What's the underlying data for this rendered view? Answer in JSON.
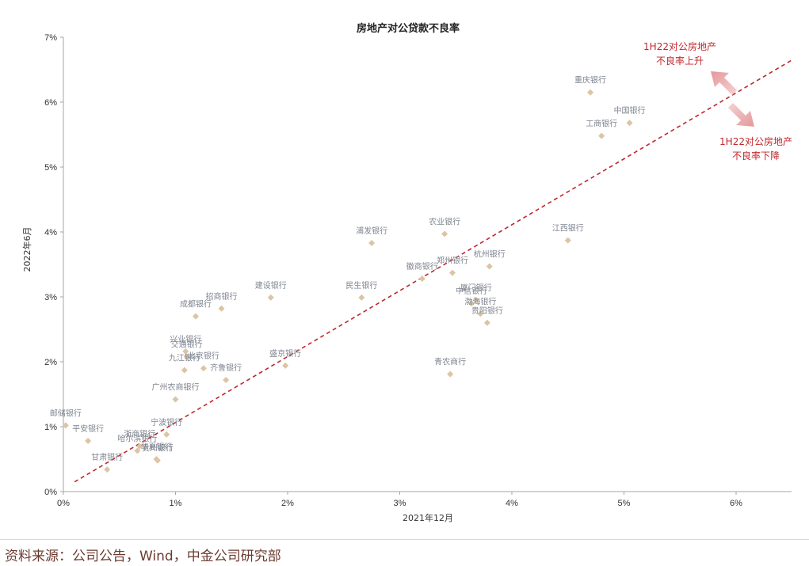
{
  "chart_data": {
    "type": "scatter",
    "title": "房地产对公贷款不良率",
    "xlabel": "2021年12月",
    "ylabel": "2022年6月",
    "xlim": [
      0,
      6.5
    ],
    "ylim": [
      0,
      7
    ],
    "x_ticks": [
      "0%",
      "1%",
      "2%",
      "3%",
      "4%",
      "5%",
      "6%"
    ],
    "y_ticks": [
      "0%",
      "1%",
      "2%",
      "3%",
      "4%",
      "5%",
      "6%",
      "7%"
    ],
    "grid": false,
    "point_color": "#dcc4a4",
    "reference_line": {
      "from": [
        0.1,
        0.15
      ],
      "to": [
        6.5,
        6.65
      ],
      "color": "#c0272d",
      "style": "dashed"
    },
    "points": [
      {
        "name": "重庆银行",
        "x": 4.7,
        "y": 6.15
      },
      {
        "name": "中国银行",
        "x": 5.05,
        "y": 5.68
      },
      {
        "name": "工商银行",
        "x": 4.8,
        "y": 5.48
      },
      {
        "name": "江西银行",
        "x": 4.5,
        "y": 3.87
      },
      {
        "name": "浦发银行",
        "x": 2.75,
        "y": 3.83
      },
      {
        "name": "农业银行",
        "x": 3.4,
        "y": 3.97
      },
      {
        "name": "杭州银行",
        "x": 3.8,
        "y": 3.47
      },
      {
        "name": "郑州银行",
        "x": 3.47,
        "y": 3.37
      },
      {
        "name": "徽商银行",
        "x": 3.2,
        "y": 3.28
      },
      {
        "name": "厦门银行",
        "x": 3.68,
        "y": 2.95
      },
      {
        "name": "中信银行",
        "x": 3.64,
        "y": 2.9
      },
      {
        "name": "渤海银行",
        "x": 3.72,
        "y": 2.74
      },
      {
        "name": "贵阳银行",
        "x": 3.78,
        "y": 2.6
      },
      {
        "name": "民生银行",
        "x": 2.66,
        "y": 2.99
      },
      {
        "name": "建设银行",
        "x": 1.85,
        "y": 2.99
      },
      {
        "name": "招商银行",
        "x": 1.41,
        "y": 2.82
      },
      {
        "name": "成都银行",
        "x": 1.18,
        "y": 2.7
      },
      {
        "name": "兴业银行",
        "x": 1.09,
        "y": 2.16
      },
      {
        "name": "交通银行",
        "x": 1.1,
        "y": 2.08
      },
      {
        "name": "九江银行",
        "x": 1.08,
        "y": 1.87
      },
      {
        "name": "齐鲁银行",
        "x": 1.45,
        "y": 1.72
      },
      {
        "name": "北京银行",
        "x": 1.25,
        "y": 1.9
      },
      {
        "name": "盛京银行",
        "x": 1.98,
        "y": 1.94
      },
      {
        "name": "青农商行",
        "x": 3.45,
        "y": 1.81
      },
      {
        "name": "广州农商银行",
        "x": 1.0,
        "y": 1.42
      },
      {
        "name": "邮储银行",
        "x": 0.02,
        "y": 1.02
      },
      {
        "name": "平安银行",
        "x": 0.22,
        "y": 0.78
      },
      {
        "name": "浙商银行",
        "x": 0.68,
        "y": 0.7
      },
      {
        "name": "宁波银行",
        "x": 0.92,
        "y": 0.88
      },
      {
        "name": "哈尔滨银行",
        "x": 0.66,
        "y": 0.63
      },
      {
        "name": "甘肃银行",
        "x": 0.39,
        "y": 0.34
      },
      {
        "name": "华夏银行",
        "x": 0.83,
        "y": 0.5
      },
      {
        "name": "贵州银行",
        "x": 0.84,
        "y": 0.48
      }
    ],
    "annotations": [
      {
        "lines": [
          "1H22对公房地产",
          "不良率上升"
        ]
      },
      {
        "lines": [
          "1H22对公房地产",
          "不良率下降"
        ]
      }
    ]
  },
  "source_note": "资料来源：公司公告，Wind，中金公司研究部"
}
